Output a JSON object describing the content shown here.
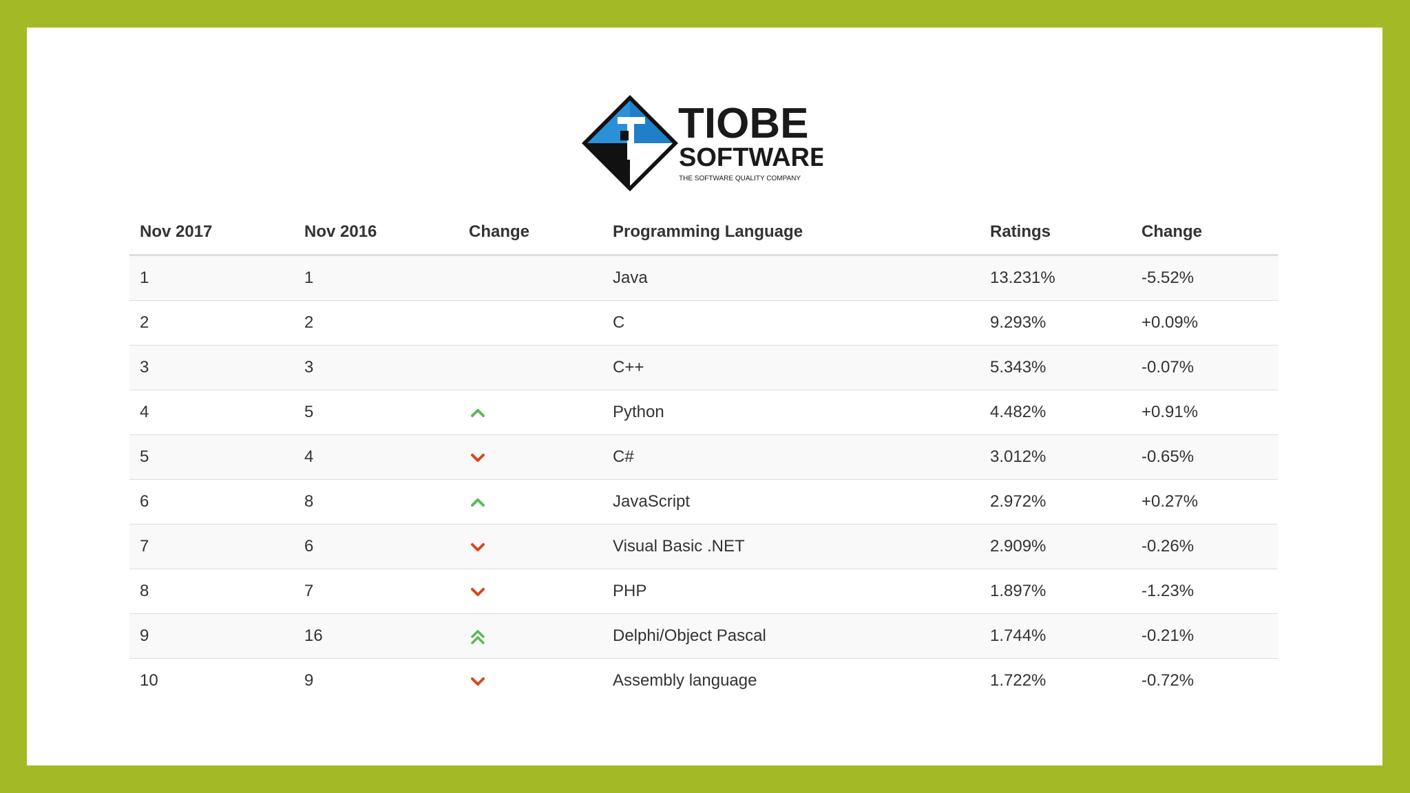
{
  "logo": {
    "brand_line1": "TIOBE",
    "brand_line2": "SOFTWARE",
    "tagline": "THE SOFTWARE QUALITY COMPANY"
  },
  "colors": {
    "frame": "#a3b925",
    "up": "#5cb85c",
    "down": "#d9461e"
  },
  "chart_data": {
    "type": "table",
    "columns": [
      "Nov 2017",
      "Nov 2016",
      "Change",
      "Programming Language",
      "Ratings",
      "Change"
    ],
    "rows": [
      {
        "nov2017": "1",
        "nov2016": "1",
        "trend": "none",
        "language": "Java",
        "rating": "13.231%",
        "change": "-5.52%"
      },
      {
        "nov2017": "2",
        "nov2016": "2",
        "trend": "none",
        "language": "C",
        "rating": "9.293%",
        "change": "+0.09%"
      },
      {
        "nov2017": "3",
        "nov2016": "3",
        "trend": "none",
        "language": "C++",
        "rating": "5.343%",
        "change": "-0.07%"
      },
      {
        "nov2017": "4",
        "nov2016": "5",
        "trend": "up",
        "language": "Python",
        "rating": "4.482%",
        "change": "+0.91%"
      },
      {
        "nov2017": "5",
        "nov2016": "4",
        "trend": "down",
        "language": "C#",
        "rating": "3.012%",
        "change": "-0.65%"
      },
      {
        "nov2017": "6",
        "nov2016": "8",
        "trend": "up",
        "language": "JavaScript",
        "rating": "2.972%",
        "change": "+0.27%"
      },
      {
        "nov2017": "7",
        "nov2016": "6",
        "trend": "down",
        "language": "Visual Basic .NET",
        "rating": "2.909%",
        "change": "-0.26%"
      },
      {
        "nov2017": "8",
        "nov2016": "7",
        "trend": "down",
        "language": "PHP",
        "rating": "1.897%",
        "change": "-1.23%"
      },
      {
        "nov2017": "9",
        "nov2016": "16",
        "trend": "double-up",
        "language": "Delphi/Object Pascal",
        "rating": "1.744%",
        "change": "-0.21%"
      },
      {
        "nov2017": "10",
        "nov2016": "9",
        "trend": "down",
        "language": "Assembly language",
        "rating": "1.722%",
        "change": "-0.72%"
      }
    ]
  }
}
